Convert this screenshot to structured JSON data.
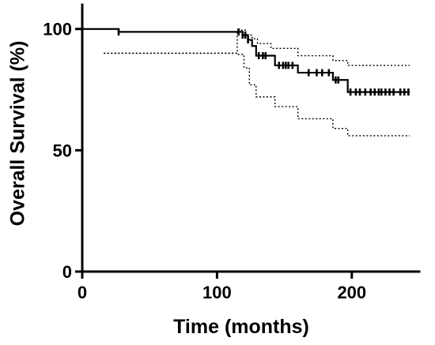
{
  "chart_data": {
    "type": "line",
    "title": "",
    "xlabel": "Time (months)",
    "ylabel": "Overall Survival (%)",
    "xlim": [
      0,
      250
    ],
    "ylim": [
      0,
      110
    ],
    "xticks": [
      0,
      100,
      200
    ],
    "yticks": [
      0,
      50,
      100
    ],
    "grid": false,
    "legend": "none",
    "series": [
      {
        "role": "survival",
        "step": true,
        "x": [
          0,
          27,
          119,
          123,
          126,
          129,
          143,
          160,
          186,
          197,
          243
        ],
        "y": [
          100,
          98.8,
          97.5,
          95.5,
          93,
          89,
          85,
          82,
          79,
          74,
          74
        ]
      },
      {
        "role": "upper-ci",
        "step": true,
        "x": [
          16,
          115,
          121,
          126,
          130,
          140,
          160,
          186,
          197,
          243
        ],
        "y": [
          90,
          99.5,
          97.5,
          96,
          94,
          92,
          89,
          87,
          85,
          85
        ]
      },
      {
        "role": "lower-ci",
        "step": true,
        "x": [
          16,
          115,
          120,
          124,
          129,
          143,
          160,
          186,
          197,
          243
        ],
        "y": [
          90,
          89.5,
          84,
          77,
          72,
          68,
          63,
          59,
          56,
          56
        ]
      }
    ],
    "censored_x": [
      27,
      116,
      119,
      121,
      123,
      131,
      134,
      136,
      146,
      149,
      151,
      153,
      156,
      168,
      174,
      178,
      183,
      188,
      190,
      199,
      203,
      206,
      210,
      214,
      217,
      220,
      222,
      225,
      228,
      231,
      236,
      239,
      242
    ]
  }
}
